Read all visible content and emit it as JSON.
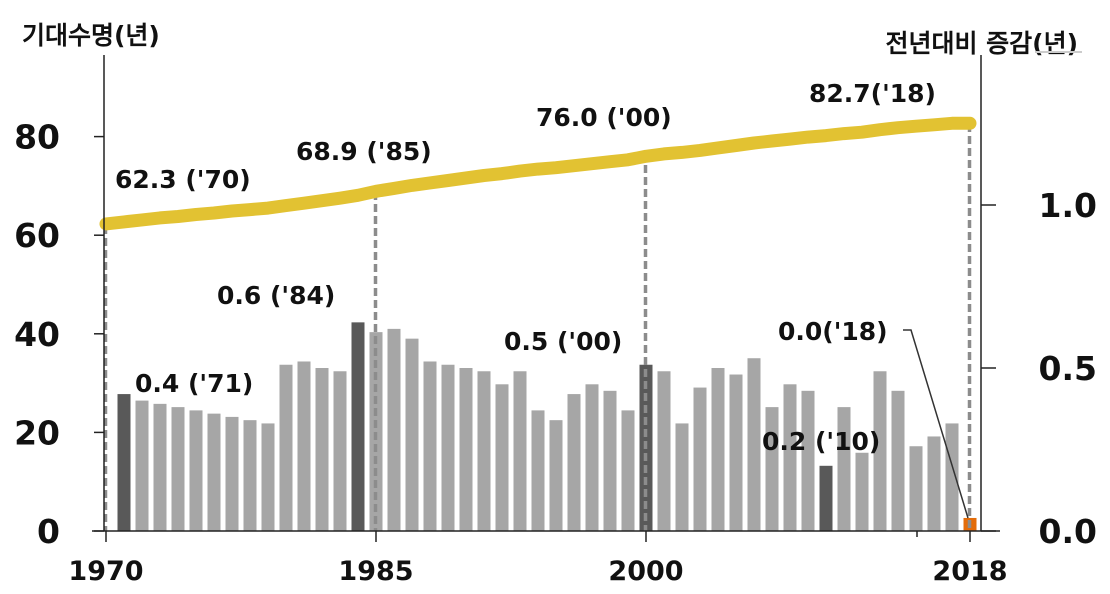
{
  "chart_data": {
    "type": "bar+line",
    "title": "",
    "left_axis": {
      "label": "기대수명(년)",
      "ticks": [
        0,
        20,
        40,
        60,
        80
      ],
      "range": [
        0,
        90
      ]
    },
    "right_axis": {
      "label": "전년대비 증감(년)",
      "ticks": [
        "0.0",
        "0.5",
        "1.0"
      ],
      "range": [
        0,
        1.3
      ]
    },
    "x_axis": {
      "tick_labels": [
        "1970",
        "1985",
        "2000",
        "2018"
      ],
      "range": [
        1970,
        2018
      ]
    },
    "series": [
      {
        "name": "기대수명",
        "type": "line",
        "axis": "left",
        "color": "#E2C232",
        "x": [
          1970,
          1971,
          1972,
          1973,
          1974,
          1975,
          1976,
          1977,
          1978,
          1979,
          1980,
          1981,
          1982,
          1983,
          1984,
          1985,
          1986,
          1987,
          1988,
          1989,
          1990,
          1991,
          1992,
          1993,
          1994,
          1995,
          1996,
          1997,
          1998,
          1999,
          2000,
          2001,
          2002,
          2003,
          2004,
          2005,
          2006,
          2007,
          2008,
          2009,
          2010,
          2011,
          2012,
          2013,
          2014,
          2015,
          2016,
          2017,
          2018
        ],
        "values": [
          62.3,
          62.7,
          63.1,
          63.5,
          63.8,
          64.2,
          64.5,
          64.9,
          65.2,
          65.5,
          66.0,
          66.5,
          67.0,
          67.5,
          68.1,
          68.9,
          69.5,
          70.1,
          70.6,
          71.1,
          71.6,
          72.1,
          72.5,
          73.0,
          73.4,
          73.7,
          74.1,
          74.5,
          74.9,
          75.3,
          76.0,
          76.5,
          76.8,
          77.2,
          77.7,
          78.2,
          78.7,
          79.1,
          79.5,
          79.9,
          80.2,
          80.6,
          80.9,
          81.4,
          81.8,
          82.1,
          82.4,
          82.7,
          82.7
        ]
      },
      {
        "name": "전년대비 증감",
        "type": "bar",
        "axis": "right",
        "color": "#A6A6A6",
        "highlight_color": "#595959",
        "last_color": "#E36C0A",
        "x": [
          1971,
          1972,
          1973,
          1974,
          1975,
          1976,
          1977,
          1978,
          1979,
          1980,
          1981,
          1982,
          1983,
          1984,
          1985,
          1986,
          1987,
          1988,
          1989,
          1990,
          1991,
          1992,
          1993,
          1994,
          1995,
          1996,
          1997,
          1998,
          1999,
          2000,
          2001,
          2002,
          2003,
          2004,
          2005,
          2006,
          2007,
          2008,
          2009,
          2010,
          2011,
          2012,
          2013,
          2014,
          2015,
          2016,
          2017,
          2018
        ],
        "values": [
          0.42,
          0.4,
          0.39,
          0.38,
          0.37,
          0.36,
          0.35,
          0.34,
          0.33,
          0.51,
          0.52,
          0.5,
          0.49,
          0.64,
          0.61,
          0.62,
          0.59,
          0.52,
          0.51,
          0.5,
          0.49,
          0.45,
          0.49,
          0.37,
          0.34,
          0.42,
          0.45,
          0.43,
          0.37,
          0.51,
          0.49,
          0.33,
          0.44,
          0.5,
          0.48,
          0.53,
          0.38,
          0.45,
          0.43,
          0.2,
          0.38,
          0.24,
          0.49,
          0.43,
          0.26,
          0.29,
          0.33,
          0.04
        ],
        "highlight_years": [
          1971,
          1984,
          2000,
          2010
        ]
      }
    ],
    "annotations": [
      {
        "text": "62.3 ('70)",
        "year": 1970,
        "series": "line"
      },
      {
        "text": "68.9 ('85)",
        "year": 1985,
        "series": "line"
      },
      {
        "text": "76.0 ('00)",
        "year": 2000,
        "series": "line"
      },
      {
        "text": "82.7('18)",
        "year": 2018,
        "series": "line"
      },
      {
        "text": "0.4 ('71)",
        "year": 1971,
        "series": "bar"
      },
      {
        "text": "0.6 ('84)",
        "year": 1984,
        "series": "bar"
      },
      {
        "text": "0.5 ('00)",
        "year": 2000,
        "series": "bar"
      },
      {
        "text": "0.2 ('10)",
        "year": 2010,
        "series": "bar"
      },
      {
        "text": "0.0('18)",
        "year": 2018,
        "series": "bar"
      }
    ],
    "reference_lines": [
      1970,
      1985,
      2000,
      2018
    ],
    "grid": false,
    "legend": null
  }
}
